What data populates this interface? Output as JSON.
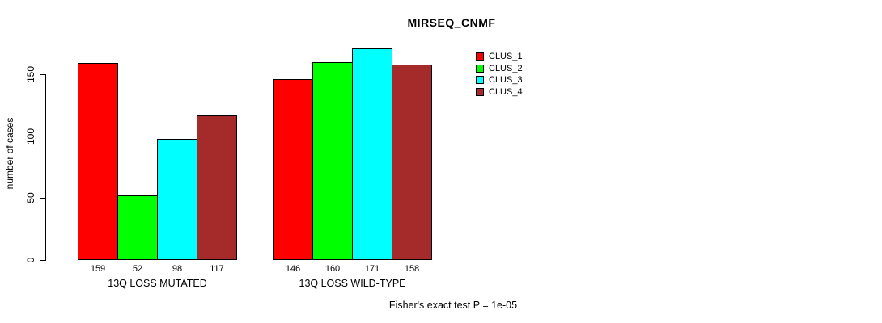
{
  "title": "MIRSEQ_CNMF",
  "chart_data": {
    "type": "bar",
    "categories": [
      "13Q LOSS MUTATED",
      "13Q LOSS WILD-TYPE"
    ],
    "series": [
      {
        "name": "CLUS_1",
        "color": "#FF0000",
        "values": [
          159,
          146
        ]
      },
      {
        "name": "CLUS_2",
        "color": "#00FF00",
        "values": [
          52,
          160
        ]
      },
      {
        "name": "CLUS_3",
        "color": "#00FFFF",
        "values": [
          98,
          171
        ]
      },
      {
        "name": "CLUS_4",
        "color": "#A52A2A",
        "values": [
          117,
          158
        ]
      }
    ],
    "ylabel": "number of cases",
    "xlabel": "",
    "yticks": [
      0,
      50,
      100,
      150
    ],
    "ylim": [
      0,
      175
    ],
    "grid": false,
    "legend_position": "right-inside",
    "bar_value_labels": true,
    "annotation": "Fisher's exact test P = 1e-05"
  }
}
